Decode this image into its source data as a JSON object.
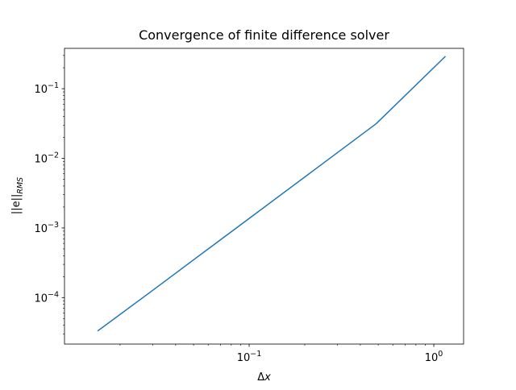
{
  "chart_data": {
    "type": "line",
    "title": "Convergence of finite difference solver",
    "xlabel": "Δx",
    "ylabel": "||e||_RMS",
    "xscale": "log",
    "yscale": "log",
    "xlim": [
      0.01,
      1.45
    ],
    "ylim": [
      2.15e-05,
      0.38
    ],
    "grid": false,
    "legend": "none",
    "x_ticks": [
      {
        "value": 0.1,
        "base": "10",
        "exp": "−1"
      },
      {
        "value": 1,
        "base": "10",
        "exp": "0"
      }
    ],
    "y_ticks": [
      {
        "value": 0.0001,
        "base": "10",
        "exp": "−4"
      },
      {
        "value": 0.001,
        "base": "10",
        "exp": "−3"
      },
      {
        "value": 0.01,
        "base": "10",
        "exp": "−2"
      },
      {
        "value": 0.1,
        "base": "10",
        "exp": "−1"
      }
    ],
    "series": [
      {
        "color": "#1f77b4",
        "x": [
          0.0152,
          0.0305,
          0.061,
          0.122,
          0.244,
          0.488,
          1.15
        ],
        "y": [
          3.35e-05,
          0.000131,
          0.000516,
          0.00203,
          0.00799,
          0.0315,
          0.288
        ]
      }
    ]
  }
}
